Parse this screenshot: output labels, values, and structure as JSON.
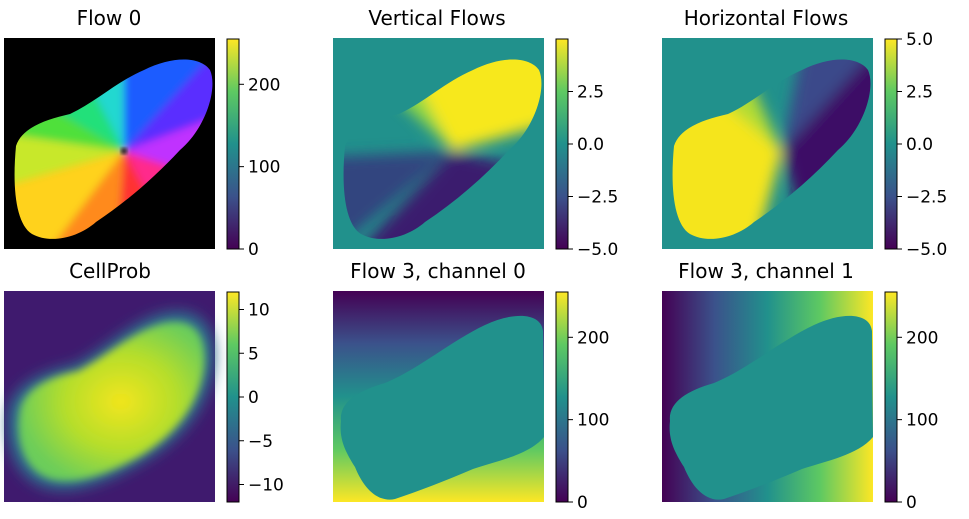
{
  "chart_data": [
    {
      "type": "heatmap",
      "title": "Flow 0",
      "image": "hsv-flow",
      "colorbar": {
        "cmap": "viridis",
        "vmin": 0,
        "vmax": 255,
        "ticks": [
          0,
          100,
          200
        ],
        "tick_labels": [
          "0",
          "100",
          "200"
        ]
      }
    },
    {
      "type": "heatmap",
      "title": "Vertical Flows",
      "image": "vertical",
      "colorbar": {
        "cmap": "viridis",
        "vmin": -5.0,
        "vmax": 5.0,
        "ticks": [
          -5.0,
          -2.5,
          0.0,
          2.5
        ],
        "tick_labels": [
          "−5.0",
          "−2.5",
          "0.0",
          "2.5"
        ]
      }
    },
    {
      "type": "heatmap",
      "title": "Horizontal Flows",
      "image": "horizontal",
      "colorbar": {
        "cmap": "viridis",
        "vmin": -5.0,
        "vmax": 5.0,
        "ticks": [
          -5.0,
          -2.5,
          0.0,
          2.5,
          5.0
        ],
        "tick_labels": [
          "−5.0",
          "−2.5",
          "0.0",
          "2.5",
          "5.0"
        ]
      }
    },
    {
      "type": "heatmap",
      "title": "CellProb",
      "image": "cellprob",
      "colorbar": {
        "cmap": "viridis",
        "vmin": -12,
        "vmax": 12,
        "ticks": [
          -10,
          -5,
          0,
          5,
          10
        ],
        "tick_labels": [
          "−10",
          "−5",
          "0",
          "5",
          "10"
        ]
      }
    },
    {
      "type": "heatmap",
      "title": "Flow 3, channel 0",
      "image": "gradient-vertical",
      "colorbar": {
        "cmap": "viridis",
        "vmin": 0,
        "vmax": 255,
        "ticks": [
          0,
          100,
          200
        ],
        "tick_labels": [
          "0",
          "100",
          "200"
        ]
      }
    },
    {
      "type": "heatmap",
      "title": "Flow 3, channel 1",
      "image": "gradient-horizontal",
      "colorbar": {
        "cmap": "viridis",
        "vmin": 0,
        "vmax": 255,
        "ticks": [
          0,
          100,
          200
        ],
        "tick_labels": [
          "0",
          "100",
          "200"
        ]
      }
    }
  ],
  "colors": {
    "viridis": [
      "#440154",
      "#3b528b",
      "#21918c",
      "#5ec962",
      "#fde725"
    ],
    "background": "#000000",
    "mid": "#21918c"
  }
}
